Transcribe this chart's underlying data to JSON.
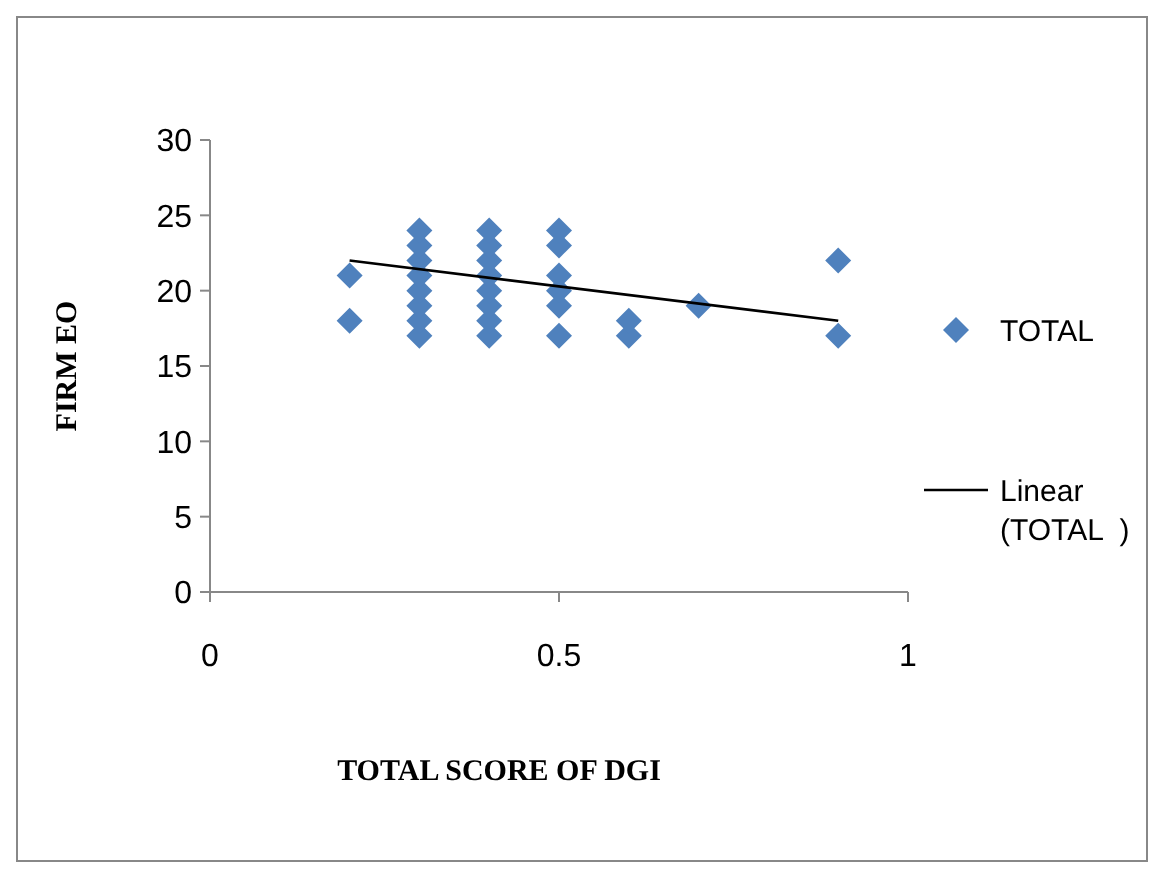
{
  "chart_data": {
    "type": "scatter",
    "xlabel": "TOTAL SCORE OF DGI",
    "ylabel": "FIRM EO",
    "xlim": [
      0,
      1
    ],
    "xticks": [
      0,
      0.5,
      1
    ],
    "ylim": [
      0,
      30
    ],
    "yticks": [
      0,
      5,
      10,
      15,
      20,
      25,
      30
    ],
    "grid": false,
    "legend": "right",
    "marker": "diamond",
    "series": [
      {
        "name": "TOTAL",
        "color": "#4f81bd",
        "x": [
          0.2,
          0.2,
          0.3,
          0.3,
          0.3,
          0.3,
          0.3,
          0.3,
          0.3,
          0.3,
          0.4,
          0.4,
          0.4,
          0.4,
          0.4,
          0.4,
          0.4,
          0.4,
          0.5,
          0.5,
          0.5,
          0.5,
          0.5,
          0.5,
          0.6,
          0.6,
          0.7,
          0.9,
          0.9
        ],
        "values": [
          21,
          18,
          17,
          18,
          19,
          20,
          21,
          22,
          23,
          24,
          17,
          18,
          19,
          20,
          21,
          22,
          23,
          24,
          17,
          19,
          20,
          21,
          23,
          24,
          17,
          18,
          19,
          22,
          17
        ]
      },
      {
        "name": "Linear (TOTAL  )",
        "type": "line",
        "marker": "none",
        "color": "#000000",
        "x": [
          0.2,
          0.9
        ],
        "values": [
          22,
          18
        ]
      }
    ]
  }
}
